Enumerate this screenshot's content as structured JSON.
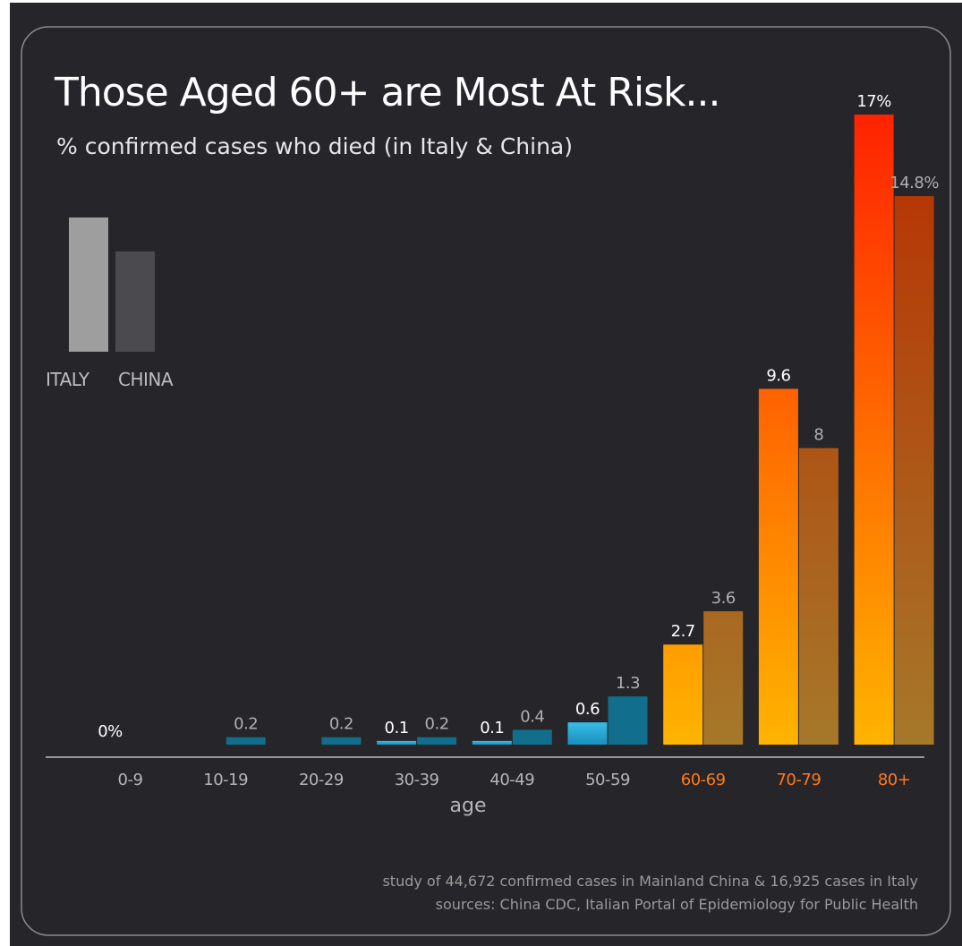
{
  "header": {
    "title": "Those Aged 60+ are Most At Risk...",
    "subtitle": "% confirmed cases who died (in Italy & China)"
  },
  "legend": {
    "italy": "ITALY",
    "china": "CHINA"
  },
  "footer": {
    "line1": "study of 44,672 confirmed cases in Mainland China & 16,925 cases in Italy",
    "line2": "sources:  China CDC, Italian Portal of Epidemiology for Public Health"
  },
  "colors": {
    "background": "#262529",
    "legend_italy": "#9e9e9e",
    "legend_china": "#4b4b4f",
    "young_italy_top": "#38bde8",
    "young_italy_bottom": "#1a8fbd",
    "young_china": "#116e8c",
    "old_italy_top": "#ff2200",
    "old_italy_bottom": "#ffb400",
    "old_china_top": "#b82e00",
    "old_china_bottom": "#a6782a",
    "tick_young": "#b5b5b5",
    "tick_old": "#ff7a1a"
  },
  "chart_data": {
    "type": "bar",
    "title": "Those Aged 60+ are Most At Risk...",
    "subtitle": "% confirmed cases who died (in Italy & China)",
    "xlabel": "age",
    "ylabel": "",
    "ylim": [
      0,
      17
    ],
    "grid": false,
    "legend_position": "top-left",
    "categories": [
      "0-9",
      "10-19",
      "20-29",
      "30-39",
      "40-49",
      "50-59",
      "60-69",
      "70-79",
      "80+"
    ],
    "series": [
      {
        "name": "ITALY",
        "values": [
          0,
          0,
          0,
          0.1,
          0.1,
          0.6,
          2.7,
          9.6,
          17
        ],
        "labels": [
          "0%",
          "",
          "",
          "0.1",
          "0.1",
          "0.6",
          "2.7",
          "9.6",
          "17%"
        ]
      },
      {
        "name": "CHINA",
        "values": [
          0,
          0.2,
          0.2,
          0.2,
          0.4,
          1.3,
          3.6,
          8,
          14.8
        ],
        "labels": [
          "",
          "0.2",
          "0.2",
          "0.2",
          "0.4",
          "1.3",
          "3.6",
          "8",
          "14.8%"
        ]
      }
    ]
  }
}
